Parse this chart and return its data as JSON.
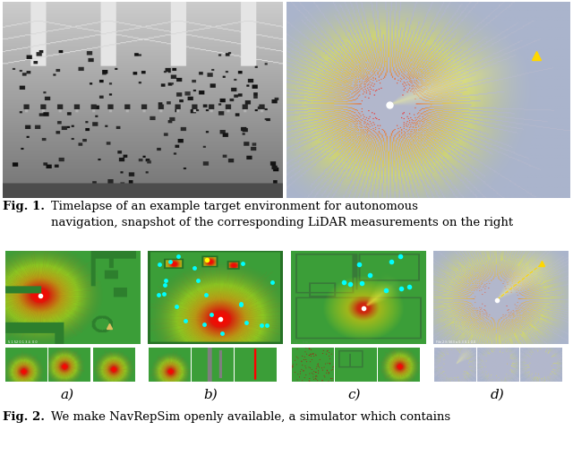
{
  "fig1_caption_bold": "Fig. 1.",
  "fig1_caption_rest": "    Timelapse of an example target environment for autonomous\nnavigation, snapshot of the corresponding LiDAR measurements on the right",
  "fig2_caption_bold": "Fig. 2.",
  "fig2_caption_rest": "    We make NavRepSim openly available, a simulator which contains",
  "subfig_labels": [
    "a)",
    "b)",
    "c)",
    "d)"
  ],
  "bg_color": "#ffffff",
  "lidar_bg": "#aab4cc",
  "green_bg": [
    0.235,
    0.62,
    0.22
  ],
  "brown_overlay": [
    0.6,
    0.38,
    0.15
  ]
}
